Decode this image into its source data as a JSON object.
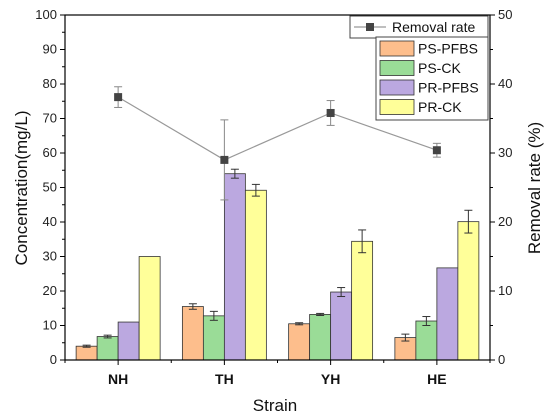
{
  "chart_data": {
    "type": "bar",
    "xlabel": "Strain",
    "ylabel": "Concentration(mg/L)",
    "ylabel_right": "Removal rate (%)",
    "ylim": [
      0,
      100
    ],
    "ylim_right": [
      0,
      50
    ],
    "yticks": [
      0,
      10,
      20,
      30,
      40,
      50,
      60,
      70,
      80,
      90,
      100
    ],
    "yticks_right": [
      0,
      10,
      20,
      30,
      40,
      50
    ],
    "categories": [
      "NH",
      "TH",
      "YH",
      "HE"
    ],
    "series": [
      {
        "name": "PS-PFBS",
        "color": "#FDBE8C",
        "values": [
          4.0,
          15.5,
          10.5,
          6.5
        ],
        "errors": [
          0.3,
          0.8,
          0.3,
          1.0
        ]
      },
      {
        "name": "PS-CK",
        "color": "#9ADC97",
        "values": [
          6.8,
          12.8,
          13.2,
          11.3
        ],
        "errors": [
          0.4,
          1.3,
          0.3,
          1.3
        ]
      },
      {
        "name": "PR-PFBS",
        "color": "#BBA8E0",
        "values": [
          11.0,
          54.0,
          19.7,
          26.7
        ],
        "errors": [
          0,
          1.3,
          1.3,
          0
        ]
      },
      {
        "name": "PR-CK",
        "color": "#FFFF99",
        "values": [
          30.0,
          49.2,
          34.4,
          40.1
        ],
        "errors": [
          0,
          1.7,
          3.3,
          3.3
        ]
      }
    ],
    "line_series": {
      "name": "Removal rate",
      "axis": "right",
      "color": "#999999",
      "marker_color": "#444444",
      "values": [
        38.1,
        29.0,
        35.8,
        30.4
      ],
      "errors": [
        1.5,
        5.8,
        1.8,
        1.0
      ]
    },
    "legend_position": "top-right"
  }
}
